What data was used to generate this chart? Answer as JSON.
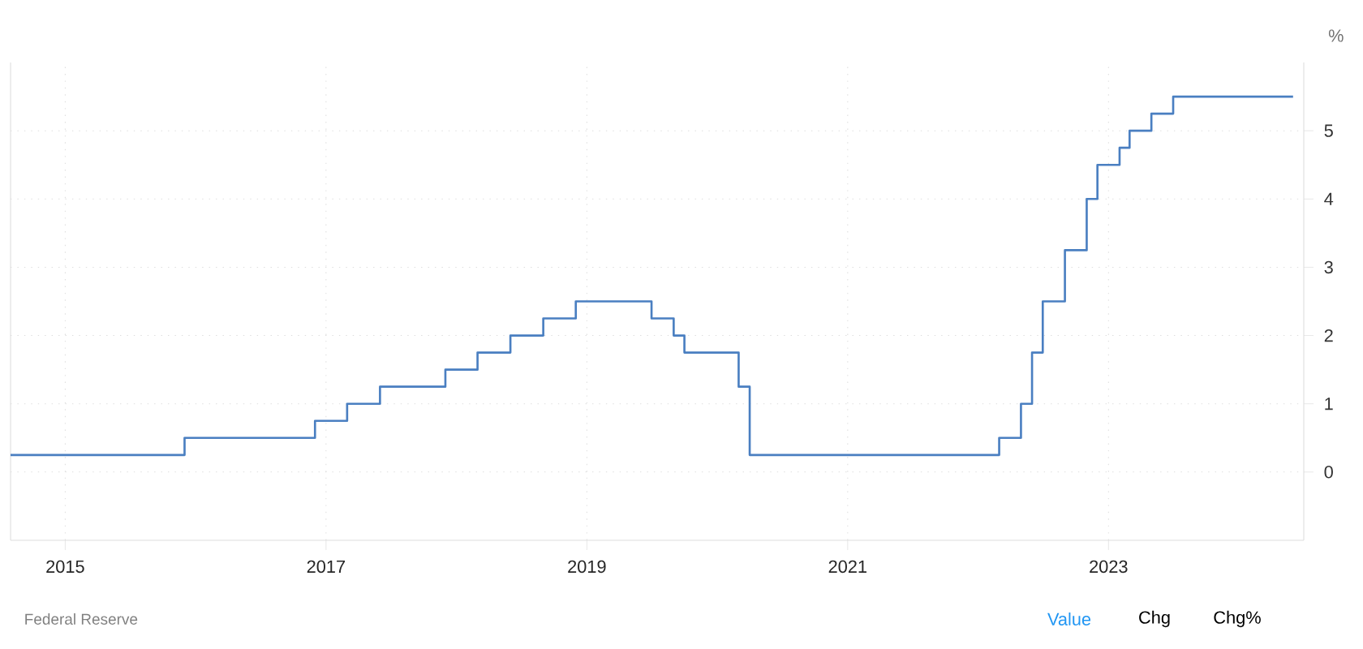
{
  "chart_data": {
    "type": "step",
    "ylabel": "%",
    "x": [
      "2014-08",
      "2015-12",
      "2016-12",
      "2017-03",
      "2017-06",
      "2017-12",
      "2018-03",
      "2018-06",
      "2018-09",
      "2018-12",
      "2019-07",
      "2019-09",
      "2019-10",
      "2020-03",
      "2020-04",
      "2022-03",
      "2022-05",
      "2022-06",
      "2022-07",
      "2022-09",
      "2022-11",
      "2022-12",
      "2023-02",
      "2023-03",
      "2023-05",
      "2023-07",
      "2024-06"
    ],
    "values": [
      0.25,
      0.5,
      0.75,
      1.0,
      1.25,
      1.5,
      1.75,
      2.0,
      2.25,
      2.5,
      2.25,
      2.0,
      1.75,
      1.25,
      0.25,
      0.5,
      1.0,
      1.75,
      2.5,
      3.25,
      4.0,
      4.5,
      4.75,
      5.0,
      5.25,
      5.5,
      5.5
    ],
    "color": "#4a7fc1",
    "xlim": [
      "2014-08",
      "2024-07"
    ],
    "xticks": [
      "2015",
      "2017",
      "2019",
      "2021",
      "2023"
    ],
    "ylim": [
      -1,
      6
    ],
    "yticks": [
      0,
      1,
      2,
      3,
      4,
      5
    ],
    "grid": true,
    "line_style": "solid",
    "marker": "none",
    "annotations": [
      "Federal Reserve",
      "Value",
      "Chg",
      "Chg%"
    ]
  }
}
